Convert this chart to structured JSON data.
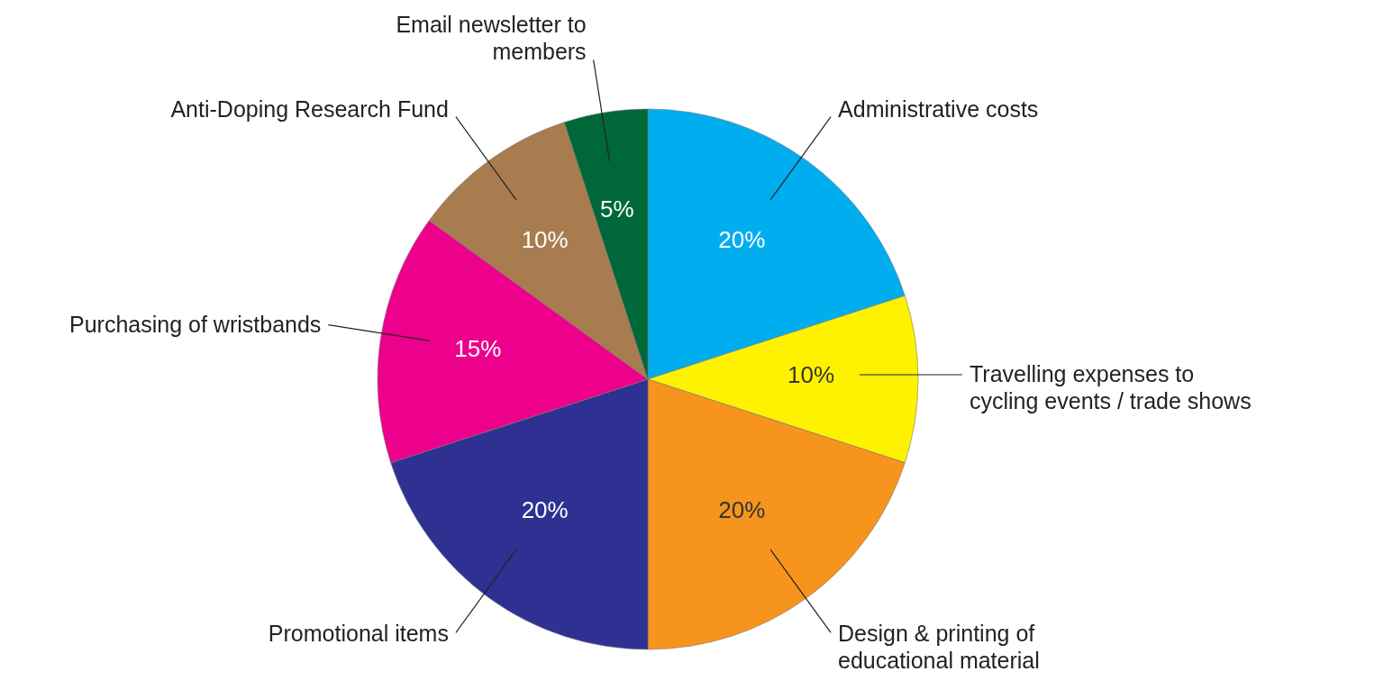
{
  "chart_data": {
    "type": "pie",
    "categories": [
      "Administrative costs",
      "Travelling expenses to cycling events / trade shows",
      "Design & printing of educational material",
      "Promotional items",
      "Purchasing of wristbands",
      "Anti-Doping Research Fund",
      "Email newsletter to members"
    ],
    "values": [
      20,
      10,
      20,
      20,
      15,
      10,
      5
    ],
    "colors": [
      "#00aeef",
      "#fff200",
      "#f7941d",
      "#2e3192",
      "#ec008c",
      "#a97c50",
      "#006838"
    ],
    "value_labels": [
      "20%",
      "10%",
      "20%",
      "20%",
      "15%",
      "10%",
      "5%"
    ]
  }
}
